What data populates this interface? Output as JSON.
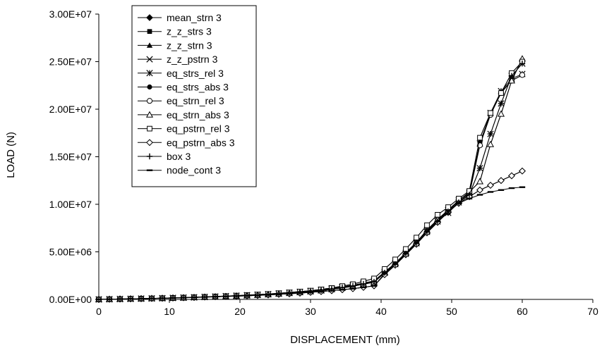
{
  "chart_data": {
    "type": "line",
    "xlabel": "DISPLACEMENT (mm)",
    "ylabel": "LOAD (N)",
    "xlim": [
      0,
      70
    ],
    "ylim": [
      0,
      30000000
    ],
    "x_ticks": [
      "0",
      "10",
      "20",
      "30",
      "40",
      "50",
      "60",
      "70"
    ],
    "y_ticks": [
      "0.00E+00",
      "5.00E+06",
      "1.00E+07",
      "1.50E+07",
      "2.00E+07",
      "2.50E+07",
      "3.00E+07"
    ],
    "grid": false,
    "legend_position": "top-left",
    "x": [
      0,
      1.5,
      3,
      4.5,
      6,
      7.5,
      9,
      10.5,
      12,
      13.5,
      15,
      16.5,
      18,
      19.5,
      21,
      22.5,
      24,
      25.5,
      27,
      28.5,
      30,
      31.5,
      33,
      34.5,
      36,
      37.5,
      39,
      40.5,
      42,
      43.5,
      45,
      46.5,
      48,
      49.5,
      51,
      52.5,
      54,
      55.5,
      57,
      58.5,
      60
    ],
    "series": [
      {
        "name": "mean_strn 3",
        "marker": "diamond-filled",
        "values": [
          0,
          20000,
          40000,
          60000,
          80000,
          100000,
          120000,
          150000,
          180000,
          210000,
          250000,
          280000,
          310000,
          340000,
          380000,
          420000,
          470000,
          530000,
          590000,
          660000,
          740000,
          830000,
          920000,
          1020000,
          1130000,
          1270000,
          1430000,
          2600000,
          3600000,
          4700000,
          5800000,
          7000000,
          8100000,
          9200000,
          10100000,
          10800000,
          11500000,
          12000000,
          12500000,
          13000000,
          13500000
        ]
      },
      {
        "name": "z_z_strs 3",
        "marker": "square-filled",
        "values": [
          0,
          20000,
          40000,
          60000,
          80000,
          100000,
          130000,
          160000,
          190000,
          230000,
          270000,
          310000,
          350000,
          400000,
          450000,
          510000,
          570000,
          650000,
          730000,
          820000,
          920000,
          1050000,
          1200000,
          1400000,
          1600000,
          1900000,
          2200000,
          3200000,
          4200000,
          5300000,
          6500000,
          7800000,
          8900000,
          9700000,
          10600000,
          11400000,
          17000000,
          19600000,
          21700000,
          23800000,
          25000000
        ]
      },
      {
        "name": "z_z_strn 3",
        "marker": "triangle-filled",
        "values": [
          0,
          20000,
          40000,
          60000,
          80000,
          100000,
          120000,
          140000,
          170000,
          200000,
          230000,
          270000,
          310000,
          350000,
          400000,
          450000,
          510000,
          580000,
          650000,
          730000,
          820000,
          920000,
          1050000,
          1200000,
          1380000,
          1600000,
          1800000,
          2800000,
          3800000,
          4900000,
          6000000,
          7200000,
          8400000,
          9400000,
          10400000,
          11300000,
          12400000,
          16300000,
          19500000,
          23000000,
          25300000
        ]
      },
      {
        "name": "z_z_pstrn 3",
        "marker": "cross",
        "values": [
          0,
          20000,
          40000,
          60000,
          80000,
          100000,
          120000,
          150000,
          180000,
          210000,
          250000,
          290000,
          330000,
          380000,
          430000,
          480000,
          540000,
          610000,
          690000,
          780000,
          870000,
          980000,
          1100000,
          1250000,
          1420000,
          1620000,
          1850000,
          2800000,
          3700000,
          4800000,
          5900000,
          7100000,
          8200000,
          9100000,
          10200000,
          11000000,
          13800000,
          17400000,
          20600000,
          23500000,
          24800000
        ]
      },
      {
        "name": "eq_strs_rel 3",
        "marker": "asterisk",
        "values": [
          0,
          20000,
          40000,
          60000,
          80000,
          100000,
          130000,
          160000,
          190000,
          220000,
          260000,
          300000,
          340000,
          390000,
          440000,
          500000,
          560000,
          630000,
          710000,
          800000,
          900000,
          1020000,
          1160000,
          1320000,
          1500000,
          1720000,
          1950000,
          2900000,
          3800000,
          4900000,
          6000000,
          7300000,
          8400000,
          9400000,
          10400000,
          11200000,
          16400000,
          19600000,
          21900000,
          23200000,
          23700000
        ]
      },
      {
        "name": "eq_strs_abs 3",
        "marker": "circle-filled",
        "values": [
          0,
          20000,
          40000,
          60000,
          80000,
          100000,
          120000,
          150000,
          180000,
          210000,
          250000,
          290000,
          330000,
          380000,
          430000,
          490000,
          550000,
          620000,
          700000,
          790000,
          890000,
          1000000,
          1130000,
          1290000,
          1460000,
          1680000,
          1900000,
          2850000,
          3750000,
          4850000,
          5950000,
          7200000,
          8300000,
          9300000,
          10300000,
          11100000,
          16500000,
          19500000,
          21800000,
          23000000,
          23600000
        ]
      },
      {
        "name": "eq_strn_rel 3",
        "marker": "circle-open",
        "values": [
          0,
          20000,
          40000,
          60000,
          80000,
          100000,
          120000,
          150000,
          180000,
          210000,
          250000,
          280000,
          320000,
          370000,
          420000,
          470000,
          530000,
          600000,
          680000,
          760000,
          850000,
          960000,
          1080000,
          1230000,
          1400000,
          1600000,
          1820000,
          2750000,
          3650000,
          4750000,
          5850000,
          7050000,
          8150000,
          9150000,
          10200000,
          11000000,
          16200000,
          19400000,
          21700000,
          23000000,
          23600000
        ]
      },
      {
        "name": "eq_strn_abs 3",
        "marker": "triangle-open",
        "values": [
          0,
          20000,
          40000,
          60000,
          80000,
          100000,
          120000,
          140000,
          170000,
          200000,
          230000,
          270000,
          310000,
          350000,
          400000,
          450000,
          510000,
          580000,
          650000,
          730000,
          820000,
          920000,
          1050000,
          1200000,
          1380000,
          1600000,
          1800000,
          2800000,
          3800000,
          4900000,
          6000000,
          7200000,
          8400000,
          9400000,
          10400000,
          11300000,
          12400000,
          16300000,
          19500000,
          23000000,
          25300000
        ]
      },
      {
        "name": "eq_pstrn_rel 3",
        "marker": "square-open",
        "values": [
          0,
          20000,
          40000,
          60000,
          80000,
          100000,
          130000,
          160000,
          190000,
          230000,
          270000,
          310000,
          350000,
          400000,
          450000,
          510000,
          570000,
          650000,
          730000,
          820000,
          920000,
          1050000,
          1200000,
          1400000,
          1600000,
          1900000,
          2200000,
          3200000,
          4200000,
          5300000,
          6500000,
          7800000,
          8900000,
          9700000,
          10600000,
          11400000,
          17000000,
          19600000,
          21700000,
          23800000,
          25000000
        ]
      },
      {
        "name": "eq_pstrn_abs 3",
        "marker": "diamond-open",
        "values": [
          0,
          20000,
          40000,
          60000,
          80000,
          100000,
          120000,
          150000,
          180000,
          210000,
          250000,
          280000,
          310000,
          340000,
          380000,
          420000,
          470000,
          530000,
          590000,
          660000,
          740000,
          830000,
          920000,
          1020000,
          1130000,
          1270000,
          1430000,
          2600000,
          3600000,
          4700000,
          5800000,
          7000000,
          8100000,
          9200000,
          10100000,
          10800000,
          11500000,
          12000000,
          12500000,
          13000000,
          13500000
        ]
      },
      {
        "name": "box 3",
        "marker": "plus",
        "values": [
          0,
          20000,
          40000,
          60000,
          80000,
          100000,
          120000,
          150000,
          180000,
          210000,
          250000,
          290000,
          330000,
          380000,
          430000,
          480000,
          540000,
          610000,
          690000,
          780000,
          870000,
          980000,
          1100000,
          1250000,
          1420000,
          1620000,
          1850000,
          2800000,
          3700000,
          4800000,
          5900000,
          7100000,
          8200000,
          9100000,
          10200000,
          11000000,
          13800000,
          17400000,
          20600000,
          23500000,
          24800000
        ]
      },
      {
        "name": "node_cont 3",
        "marker": "dash",
        "values": [
          0,
          20000,
          40000,
          60000,
          80000,
          100000,
          120000,
          150000,
          180000,
          210000,
          250000,
          280000,
          310000,
          340000,
          380000,
          420000,
          470000,
          530000,
          590000,
          660000,
          740000,
          830000,
          920000,
          1020000,
          1130000,
          1270000,
          1430000,
          2700000,
          3700000,
          4800000,
          5900000,
          7100000,
          8200000,
          9300000,
          10100000,
          10600000,
          11000000,
          11300000,
          11500000,
          11700000,
          11800000
        ]
      }
    ]
  }
}
